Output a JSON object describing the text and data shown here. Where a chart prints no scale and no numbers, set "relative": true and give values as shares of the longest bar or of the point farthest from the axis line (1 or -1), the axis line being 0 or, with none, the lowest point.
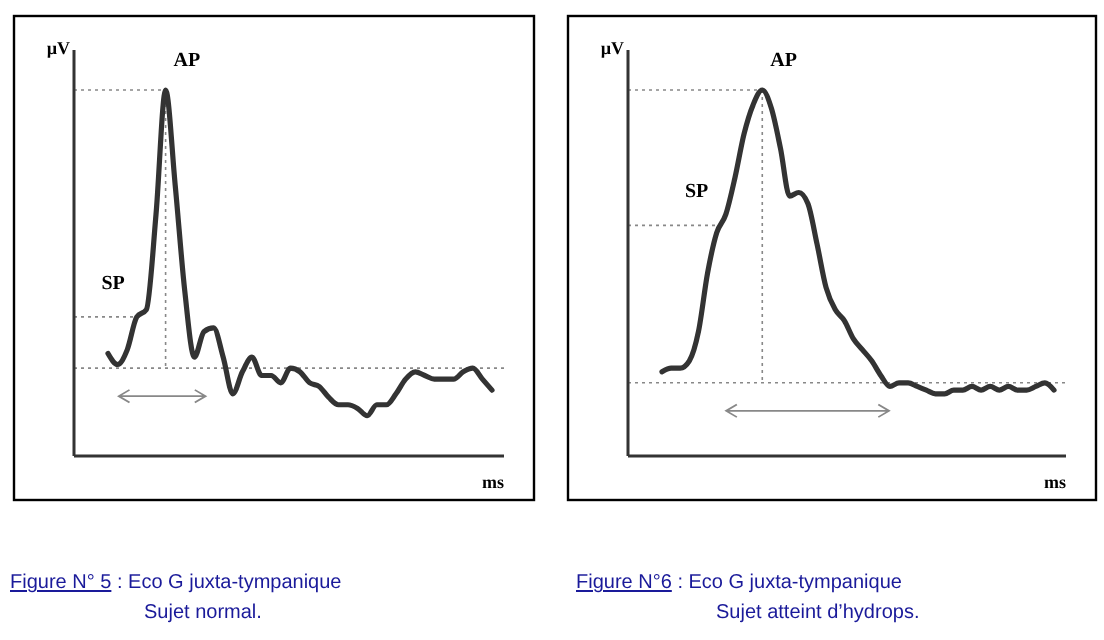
{
  "chart_data": [
    {
      "type": "line",
      "title": "Figure N° 5",
      "subtitle": ": Eco G juxta-tympanique",
      "annotations": [
        "Sujet normal."
      ],
      "xlabel": "ms",
      "ylabel": "µV",
      "relative": true,
      "categories": [
        null,
        null,
        null,
        null,
        null,
        null,
        null,
        null,
        null,
        null,
        null,
        null,
        null,
        null,
        null,
        null,
        null,
        null,
        null,
        null,
        null,
        null,
        null,
        null,
        null,
        null,
        null,
        null,
        null,
        null,
        null,
        null,
        null,
        null,
        null,
        null,
        null,
        null,
        null,
        null,
        null
      ],
      "series": [
        {
          "color": "#333333",
          "values": [
            0.28,
            0.25,
            0.29,
            0.38,
            0.4,
            0.66,
            1,
            0.74,
            0.45,
            0.27,
            0.34,
            0.35,
            0.27,
            0.17,
            0.23,
            0.27,
            0.22,
            0.22,
            0.2,
            0.24,
            0.23,
            0.2,
            0.19,
            0.16,
            0.14,
            0.14,
            0.13,
            0.11,
            0.14,
            0.14,
            0.17,
            0.21,
            0.23,
            0.22,
            0.21,
            0.21,
            0.21,
            0.23,
            0.24,
            0.21,
            0.18
          ]
        }
      ],
      "ref_lines": [
        {
          "axis": "y",
          "value": 0.24,
          "label": null,
          "line_style": "dotted"
        },
        {
          "axis": "y",
          "value": 0.38,
          "label": "SP",
          "line_style": "dotted"
        },
        {
          "axis": "y",
          "value": 1,
          "label": "AP",
          "line_style": "dotted"
        }
      ]
    },
    {
      "type": "line",
      "title": "Figure N°6",
      "subtitle": ": Eco G juxta-tympanique",
      "annotations": [
        "Sujet atteint d’hydrops."
      ],
      "xlabel": "ms",
      "ylabel": "µV",
      "relative": true,
      "categories": [
        null,
        null,
        null,
        null,
        null,
        null,
        null,
        null,
        null,
        null,
        null,
        null,
        null,
        null,
        null,
        null,
        null,
        null,
        null,
        null,
        null,
        null,
        null,
        null,
        null,
        null,
        null,
        null,
        null,
        null,
        null,
        null,
        null,
        null,
        null,
        null,
        null,
        null,
        null,
        null,
        null,
        null,
        null,
        null
      ],
      "series": [
        {
          "color": "#333333",
          "values": [
            0.23,
            0.24,
            0.24,
            0.26,
            0.34,
            0.5,
            0.61,
            0.66,
            0.76,
            0.88,
            0.96,
            1,
            0.95,
            0.84,
            0.71,
            0.72,
            0.69,
            0.58,
            0.46,
            0.4,
            0.37,
            0.32,
            0.29,
            0.26,
            0.22,
            0.19,
            0.2,
            0.2,
            0.19,
            0.18,
            0.17,
            0.17,
            0.18,
            0.18,
            0.19,
            0.18,
            0.19,
            0.18,
            0.19,
            0.18,
            0.18,
            0.19,
            0.2,
            0.18
          ]
        }
      ],
      "ref_lines": [
        {
          "axis": "y",
          "value": 0.2,
          "label": null,
          "line_style": "dotted"
        },
        {
          "axis": "y",
          "value": 0.63,
          "label": "SP",
          "line_style": "dotted"
        },
        {
          "axis": "y",
          "value": 1,
          "label": "AP",
          "line_style": "dotted"
        }
      ]
    }
  ]
}
